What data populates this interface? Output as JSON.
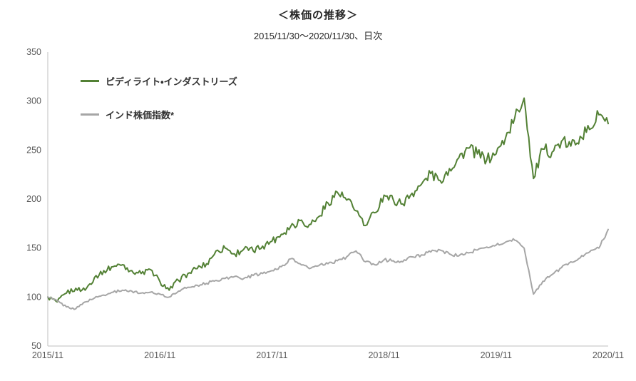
{
  "title": "＜株価の推移＞",
  "subtitle": "2015/11/30～2020/11/30、日次",
  "chart_data": {
    "type": "line",
    "title": "＜株価の推移＞",
    "subtitle": "2015/11/30～2020/11/30、日次",
    "xlabel": "",
    "ylabel": "",
    "grid": false,
    "legend_position": "top-left-inside",
    "ylim": [
      50,
      350
    ],
    "y_ticks": [
      50,
      100,
      150,
      200,
      250,
      300,
      350
    ],
    "xlim_months": [
      0,
      60
    ],
    "x_unit": "months since 2015/11 (values are monthly anchors of daily indexed series, start = 100)",
    "x_ticks": [
      {
        "m": 0,
        "label": "2015/11"
      },
      {
        "m": 12,
        "label": "2016/11"
      },
      {
        "m": 24,
        "label": "2017/11"
      },
      {
        "m": 36,
        "label": "2018/11"
      },
      {
        "m": 48,
        "label": "2019/11"
      },
      {
        "m": 60,
        "label": "2020/11"
      }
    ],
    "axis_color": "#bfbfbf",
    "tick_color": "#595959",
    "series": [
      {
        "id": "pidilite",
        "name": "ピディライト・インダストリーズ",
        "color": "#538135",
        "noise": 3.0,
        "values": [
          100,
          95,
          104,
          109,
          107,
          120,
          127,
          131,
          133,
          127,
          124,
          128,
          116,
          107,
          117,
          124,
          129,
          134,
          147,
          150,
          144,
          149,
          147,
          152,
          157,
          164,
          172,
          178,
          174,
          182,
          196,
          207,
          199,
          188,
          173,
          186,
          204,
          199,
          195,
          206,
          215,
          226,
          219,
          231,
          242,
          252,
          246,
          240,
          246,
          262,
          283,
          303,
          221,
          251,
          248,
          259,
          254,
          264,
          271,
          286,
          277
        ]
      },
      {
        "id": "india-index",
        "name": "インド株価指数*",
        "color": "#a6a6a6",
        "noise": 1.4,
        "values": [
          100,
          96,
          90,
          88,
          95,
          99,
          102,
          105,
          107,
          106,
          104,
          105,
          103,
          100,
          106,
          110,
          112,
          114,
          117,
          119,
          121,
          119,
          122,
          124,
          127,
          131,
          139,
          134,
          129,
          132,
          134,
          137,
          141,
          147,
          136,
          133,
          138,
          137,
          136,
          141,
          143,
          146,
          148,
          144,
          142,
          145,
          148,
          151,
          153,
          156,
          158,
          150,
          103,
          116,
          123,
          130,
          136,
          140,
          146,
          150,
          169
        ]
      }
    ]
  }
}
